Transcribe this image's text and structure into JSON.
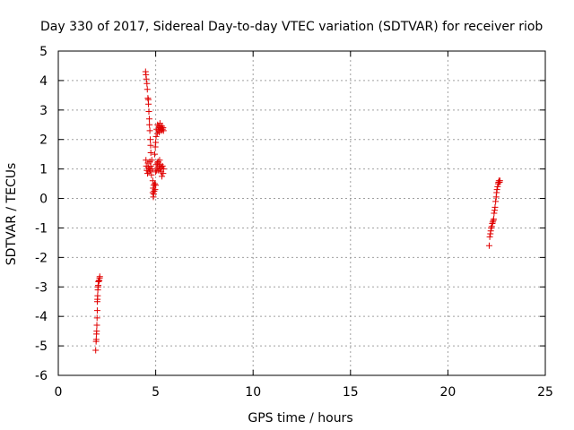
{
  "chart_data": {
    "type": "scatter",
    "title": "Day 330 of 2017, Sidereal Day-to-day VTEC variation (SDTVAR) for receiver riob",
    "xlabel": "GPS time / hours",
    "ylabel": "SDTVAR / TECUs",
    "xlim": [
      0,
      25
    ],
    "ylim": [
      -6,
      5
    ],
    "xticks": [
      0,
      5,
      10,
      15,
      20,
      25
    ],
    "xtick_labels": [
      "0",
      "5",
      "10",
      "15",
      "20",
      "25"
    ],
    "yticks": [
      -6,
      -5,
      -4,
      -3,
      -2,
      -1,
      0,
      1,
      2,
      3,
      4,
      5
    ],
    "ytick_labels": [
      "-6",
      "-5",
      "-4",
      "-3",
      "-2",
      "-1",
      "0",
      "1",
      "2",
      "3",
      "4",
      "5"
    ],
    "grid": true,
    "marker": "+",
    "series": [
      {
        "name": "SDTVAR",
        "color": "#e00000",
        "points": [
          [
            1.92,
            -5.15
          ],
          [
            1.94,
            -4.85
          ],
          [
            1.95,
            -4.78
          ],
          [
            1.96,
            -4.6
          ],
          [
            1.97,
            -4.5
          ],
          [
            1.98,
            -4.3
          ],
          [
            1.99,
            -4.05
          ],
          [
            2.0,
            -3.8
          ],
          [
            2.0,
            -3.5
          ],
          [
            2.01,
            -3.42
          ],
          [
            2.02,
            -3.3
          ],
          [
            2.03,
            -3.1
          ],
          [
            2.04,
            -3.0
          ],
          [
            2.05,
            -2.95
          ],
          [
            2.06,
            -2.82
          ],
          [
            2.08,
            -2.8
          ],
          [
            2.1,
            -2.78
          ],
          [
            2.12,
            -2.7
          ],
          [
            2.13,
            -2.65
          ],
          [
            4.48,
            4.3
          ],
          [
            4.5,
            4.2
          ],
          [
            4.52,
            4.05
          ],
          [
            4.55,
            3.9
          ],
          [
            4.57,
            3.7
          ],
          [
            4.6,
            3.4
          ],
          [
            4.62,
            3.35
          ],
          [
            4.63,
            3.2
          ],
          [
            4.65,
            2.95
          ],
          [
            4.67,
            2.7
          ],
          [
            4.68,
            2.5
          ],
          [
            4.7,
            2.3
          ],
          [
            4.72,
            2.0
          ],
          [
            4.74,
            1.8
          ],
          [
            4.75,
            1.55
          ],
          [
            4.5,
            1.3
          ],
          [
            4.52,
            1.1
          ],
          [
            4.55,
            0.95
          ],
          [
            4.58,
            0.85
          ],
          [
            4.6,
            1.2
          ],
          [
            4.62,
            1.05
          ],
          [
            4.65,
            0.9
          ],
          [
            4.68,
            1.0
          ],
          [
            4.7,
            1.25
          ],
          [
            4.72,
            0.95
          ],
          [
            4.75,
            1.1
          ],
          [
            4.78,
            0.8
          ],
          [
            4.8,
            1.3
          ],
          [
            4.82,
            1.0
          ],
          [
            4.85,
            0.6
          ],
          [
            4.85,
            0.2
          ],
          [
            4.87,
            0.35
          ],
          [
            4.88,
            0.05
          ],
          [
            4.9,
            0.15
          ],
          [
            4.9,
            0.45
          ],
          [
            4.92,
            0.25
          ],
          [
            4.95,
            0.5
          ],
          [
            4.97,
            0.3
          ],
          [
            5.0,
            0.45
          ],
          [
            5.0,
            0.9
          ],
          [
            5.02,
            1.15
          ],
          [
            5.05,
            0.95
          ],
          [
            5.08,
            1.2
          ],
          [
            5.1,
            1.05
          ],
          [
            5.12,
            1.25
          ],
          [
            5.15,
            0.95
          ],
          [
            5.18,
            1.1
          ],
          [
            5.2,
            1.3
          ],
          [
            5.22,
            1.0
          ],
          [
            5.25,
            1.15
          ],
          [
            5.28,
            0.9
          ],
          [
            5.3,
            1.05
          ],
          [
            5.32,
            0.75
          ],
          [
            5.35,
            1.1
          ],
          [
            5.38,
            0.85
          ],
          [
            5.4,
            1.0
          ],
          [
            4.95,
            1.5
          ],
          [
            4.98,
            1.75
          ],
          [
            5.0,
            1.9
          ],
          [
            5.02,
            2.1
          ],
          [
            5.05,
            2.35
          ],
          [
            5.08,
            2.2
          ],
          [
            5.1,
            2.5
          ],
          [
            5.12,
            2.3
          ],
          [
            5.15,
            2.45
          ],
          [
            5.18,
            2.25
          ],
          [
            5.2,
            2.4
          ],
          [
            5.22,
            2.55
          ],
          [
            5.25,
            2.35
          ],
          [
            5.28,
            2.4
          ],
          [
            5.3,
            2.3
          ],
          [
            5.32,
            2.45
          ],
          [
            5.35,
            2.35
          ],
          [
            5.38,
            2.4
          ],
          [
            5.4,
            2.3
          ],
          [
            22.12,
            -1.6
          ],
          [
            22.15,
            -1.3
          ],
          [
            22.18,
            -1.2
          ],
          [
            22.2,
            -1.1
          ],
          [
            22.22,
            -1.0
          ],
          [
            22.25,
            -0.95
          ],
          [
            22.28,
            -0.85
          ],
          [
            22.3,
            -0.8
          ],
          [
            22.33,
            -0.75
          ],
          [
            22.35,
            -0.7
          ],
          [
            22.37,
            -0.5
          ],
          [
            22.4,
            -0.4
          ],
          [
            22.42,
            -0.3
          ],
          [
            22.45,
            -0.1
          ],
          [
            22.48,
            0.05
          ],
          [
            22.5,
            0.2
          ],
          [
            22.52,
            0.3
          ],
          [
            22.55,
            0.4
          ],
          [
            22.58,
            0.5
          ],
          [
            22.6,
            0.55
          ],
          [
            22.62,
            0.6
          ],
          [
            22.65,
            0.55
          ],
          [
            22.67,
            0.6
          ]
        ]
      }
    ]
  }
}
